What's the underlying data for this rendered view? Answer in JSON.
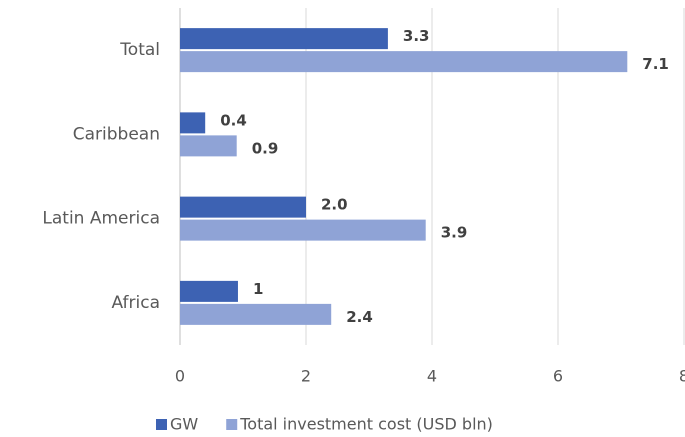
{
  "chart_data": {
    "type": "bar",
    "orientation": "horizontal",
    "categories": [
      "Total",
      "Caribbean",
      "Latin America",
      "Africa"
    ],
    "series": [
      {
        "name": "GW",
        "color": "#3d62b3",
        "values": [
          3.3,
          0.4,
          2.0,
          0.92
        ],
        "value_labels": [
          "3.3",
          "0.4",
          "2.0",
          "1"
        ]
      },
      {
        "name": "Total investment cost (USD bln)",
        "color": "#8fa3d6",
        "values": [
          7.1,
          0.9,
          3.9,
          2.4
        ]
      }
    ],
    "xlim": [
      0,
      8
    ],
    "xticks": [
      0,
      2,
      4,
      6,
      8
    ],
    "grid": true,
    "legend": "bottom"
  }
}
